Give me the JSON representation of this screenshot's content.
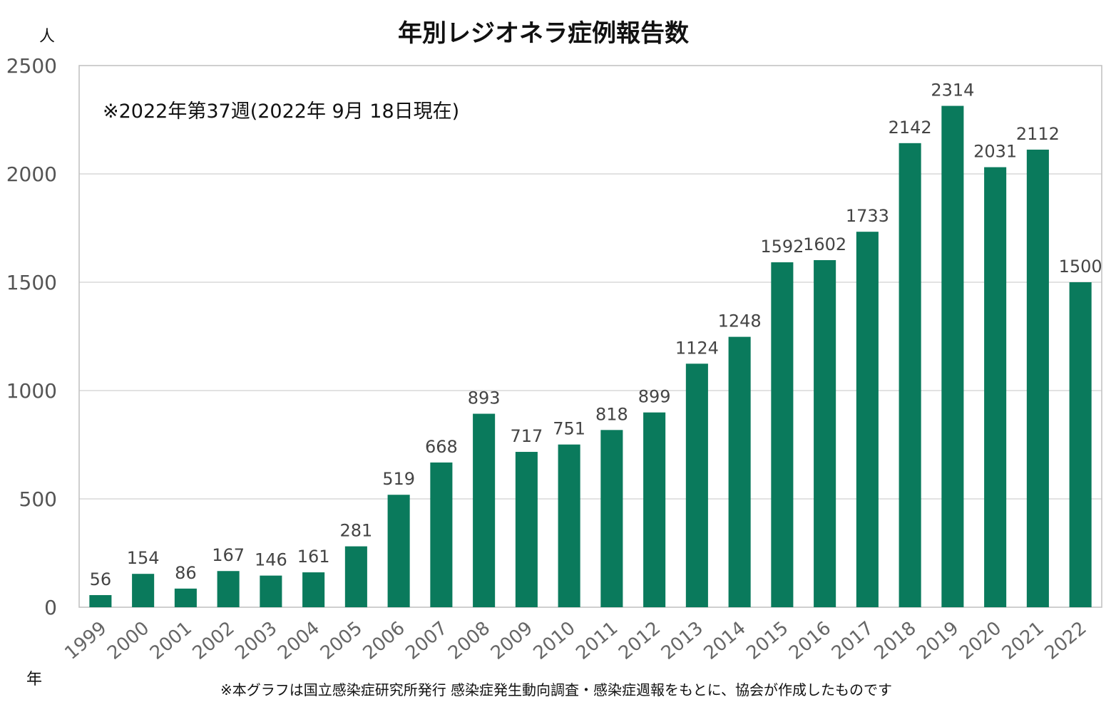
{
  "chart_data": {
    "type": "bar",
    "title": "年別レジオネラ症例報告数",
    "ylabel": "人",
    "xlabel": "年",
    "annotation": "※2022年第37週(2022年 9月 18日現在)",
    "footnote": "※本グラフは国立感染症研究所発行 感染症発生動向調査・感染症週報をもとに、協会が作成したものです",
    "ylim": [
      0,
      2500
    ],
    "yticks": [
      0,
      500,
      1000,
      1500,
      2000,
      2500
    ],
    "grid": true,
    "bar_color": "#0a7a5c",
    "categories": [
      "1999",
      "2000",
      "2001",
      "2002",
      "2003",
      "2004",
      "2005",
      "2006",
      "2007",
      "2008",
      "2009",
      "2010",
      "2011",
      "2012",
      "2013",
      "2014",
      "2015",
      "2016",
      "2017",
      "2018",
      "2019",
      "2020",
      "2021",
      "2022"
    ],
    "values": [
      56,
      154,
      86,
      167,
      146,
      161,
      281,
      519,
      668,
      893,
      717,
      751,
      818,
      899,
      1124,
      1248,
      1592,
      1602,
      1733,
      2142,
      2314,
      2031,
      2112,
      1500
    ]
  }
}
